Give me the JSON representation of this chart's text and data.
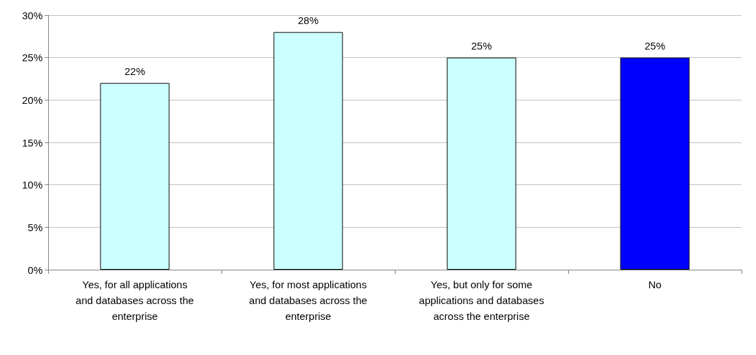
{
  "chart_data": {
    "type": "bar",
    "categories": [
      "Yes, for all applications and databases across the enterprise",
      "Yes, for most applications and databases across the enterprise",
      "Yes, but only for some applications and databases across the enterprise",
      "No"
    ],
    "values": [
      22,
      28,
      25,
      25
    ],
    "colors": [
      "#ccffff",
      "#ccffff",
      "#ccffff",
      "#0000ff"
    ],
    "value_labels": [
      "22%",
      "28%",
      "25%",
      "25%"
    ],
    "ylim": [
      0,
      30
    ],
    "yticks": [
      {
        "value": 0,
        "label": "0%"
      },
      {
        "value": 5,
        "label": "5%"
      },
      {
        "value": 10,
        "label": "10%"
      },
      {
        "value": 15,
        "label": "15%"
      },
      {
        "value": 20,
        "label": "20%"
      },
      {
        "value": 25,
        "label": "25%"
      },
      {
        "value": 30,
        "label": "30%"
      }
    ],
    "grid": "y"
  }
}
